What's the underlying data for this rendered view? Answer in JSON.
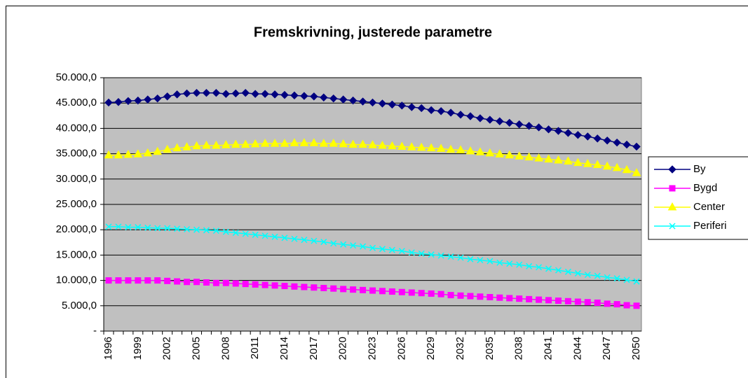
{
  "chart_data": {
    "type": "line",
    "title": "Fremskrivning, justerede parametre",
    "categories": [
      "1996",
      null,
      null,
      "1999",
      null,
      null,
      "2002",
      null,
      null,
      "2005",
      null,
      null,
      "2008",
      null,
      null,
      "2011",
      null,
      null,
      "2014",
      null,
      null,
      "2017",
      null,
      null,
      "2020",
      null,
      null,
      "2023",
      null,
      null,
      "2026",
      null,
      null,
      "2029",
      null,
      null,
      "2032",
      null,
      null,
      "2035",
      null,
      null,
      "2038",
      null,
      null,
      "2041",
      null,
      null,
      "2044",
      null,
      null,
      "2047",
      null,
      null,
      "2050"
    ],
    "series": [
      {
        "name": "By",
        "color": "#000080",
        "marker": "diamond",
        "values": [
          45100,
          45200,
          45400,
          45500,
          45700,
          45900,
          46300,
          46700,
          46900,
          47000,
          47000,
          47000,
          46800,
          46900,
          47000,
          46800,
          46800,
          46700,
          46600,
          46500,
          46400,
          46300,
          46100,
          45900,
          45700,
          45500,
          45300,
          45100,
          44900,
          44700,
          44500,
          44200,
          44000,
          43600,
          43400,
          43100,
          42700,
          42400,
          42000,
          41700,
          41400,
          41100,
          40800,
          40500,
          40200,
          39800,
          39500,
          39100,
          38700,
          38400,
          38000,
          37600,
          37200,
          36800,
          36400
        ]
      },
      {
        "name": "Bygd",
        "color": "#ff00ff",
        "marker": "square",
        "values": [
          10000,
          10000,
          10000,
          10000,
          10000,
          10000,
          9900,
          9800,
          9700,
          9700,
          9600,
          9500,
          9500,
          9400,
          9300,
          9200,
          9100,
          9000,
          8900,
          8800,
          8700,
          8600,
          8500,
          8400,
          8300,
          8200,
          8100,
          8000,
          7900,
          7800,
          7700,
          7600,
          7500,
          7400,
          7300,
          7100,
          7000,
          6900,
          6800,
          6700,
          6600,
          6500,
          6400,
          6300,
          6200,
          6100,
          6000,
          5900,
          5800,
          5700,
          5600,
          5400,
          5300,
          5100,
          5000
        ]
      },
      {
        "name": "Center",
        "color": "#ffff00",
        "marker": "triangle",
        "values": [
          34700,
          34700,
          34800,
          34900,
          35100,
          35400,
          35800,
          36100,
          36300,
          36500,
          36600,
          36600,
          36700,
          36800,
          36800,
          36900,
          37000,
          37000,
          37000,
          37100,
          37100,
          37100,
          37000,
          37000,
          36900,
          36800,
          36800,
          36700,
          36600,
          36500,
          36400,
          36300,
          36200,
          36100,
          36000,
          35800,
          35700,
          35500,
          35300,
          35100,
          34900,
          34700,
          34500,
          34300,
          34100,
          33900,
          33700,
          33500,
          33200,
          33000,
          32800,
          32500,
          32200,
          31800,
          31200
        ]
      },
      {
        "name": "Periferi",
        "color": "#00ffff",
        "marker": "x",
        "values": [
          20600,
          20600,
          20500,
          20500,
          20400,
          20300,
          20300,
          20200,
          20100,
          20000,
          19900,
          19800,
          19600,
          19400,
          19200,
          19000,
          18800,
          18600,
          18400,
          18200,
          18000,
          17800,
          17600,
          17300,
          17100,
          16900,
          16700,
          16400,
          16200,
          16000,
          15800,
          15500,
          15300,
          15100,
          14900,
          14700,
          14500,
          14200,
          14000,
          13800,
          13500,
          13300,
          13100,
          12800,
          12600,
          12300,
          12000,
          11700,
          11400,
          11100,
          10900,
          10600,
          10400,
          10100,
          9800
        ]
      }
    ],
    "ylim": [
      0,
      50000
    ],
    "yticks": [
      {
        "value": 0,
        "label": "-"
      },
      {
        "value": 5000,
        "label": "5.000,0"
      },
      {
        "value": 10000,
        "label": "10.000,0"
      },
      {
        "value": 15000,
        "label": "15.000,0"
      },
      {
        "value": 20000,
        "label": "20.000,0"
      },
      {
        "value": 25000,
        "label": "25.000,0"
      },
      {
        "value": 30000,
        "label": "30.000,0"
      },
      {
        "value": 35000,
        "label": "35.000,0"
      },
      {
        "value": 40000,
        "label": "40.000,0"
      },
      {
        "value": 45000,
        "label": "45.000,0"
      },
      {
        "value": 50000,
        "label": "50.000,0"
      }
    ],
    "grid": true,
    "plot_background": "#c0c0c0",
    "legend": "right"
  }
}
